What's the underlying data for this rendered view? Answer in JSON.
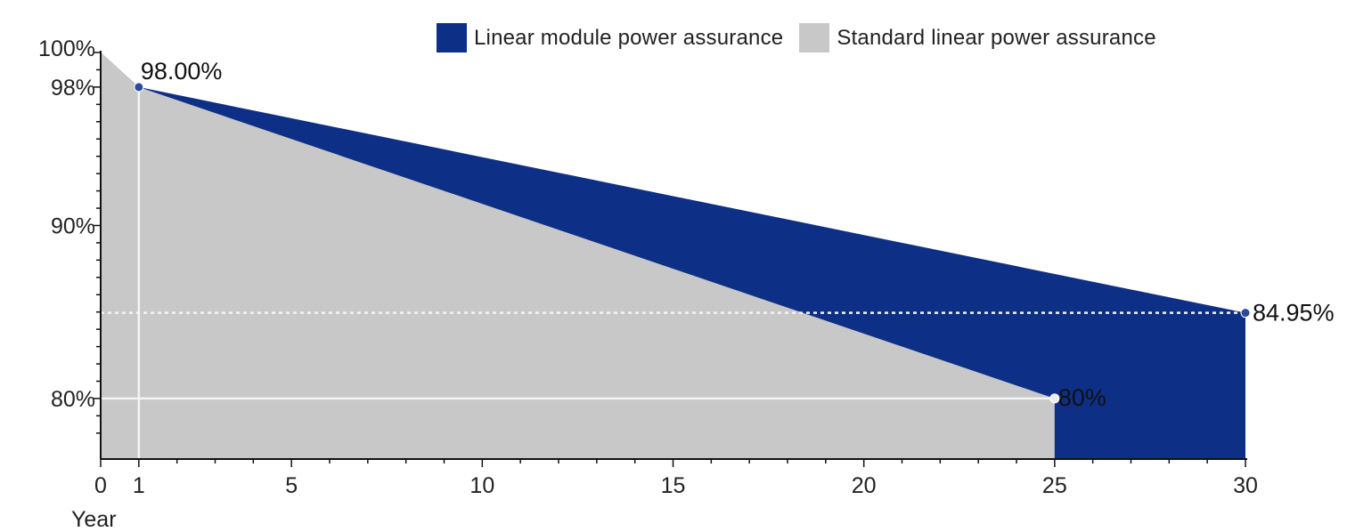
{
  "chart_data": {
    "type": "area",
    "xlabel": "Year",
    "ylabel": "",
    "xlim": [
      0,
      30
    ],
    "ylim": [
      76.5,
      100
    ],
    "x_ticks": [
      "0",
      "1",
      "5",
      "10",
      "15",
      "20",
      "25",
      "30"
    ],
    "x_tick_values": [
      0,
      1,
      5,
      10,
      15,
      20,
      25,
      30
    ],
    "y_ticks": [
      "100%",
      "98%",
      "90%",
      "80%"
    ],
    "y_tick_values": [
      100,
      98,
      90,
      80
    ],
    "grid": false,
    "legend": "top-center",
    "series": [
      {
        "name": "Linear module power assurance",
        "color": "#0d2f86",
        "x": [
          0,
          1,
          30
        ],
        "y": [
          100,
          98,
          84.95
        ]
      },
      {
        "name": "Standard linear power assurance",
        "color": "#c8c8c8",
        "x": [
          0,
          1,
          25
        ],
        "y": [
          100,
          98,
          80
        ]
      }
    ],
    "annotations": [
      {
        "text": "98.00%",
        "x": 1,
        "y": 98
      },
      {
        "text": "84.95%",
        "x": 30,
        "y": 84.95
      },
      {
        "text": "80%",
        "x": 25,
        "y": 80
      }
    ],
    "reference_lines": [
      {
        "axis": "y",
        "value": 84.95,
        "style": "dotted"
      },
      {
        "axis": "y",
        "value": 80,
        "style": "solid"
      },
      {
        "axis": "x",
        "value": 1,
        "style": "solid"
      }
    ]
  }
}
